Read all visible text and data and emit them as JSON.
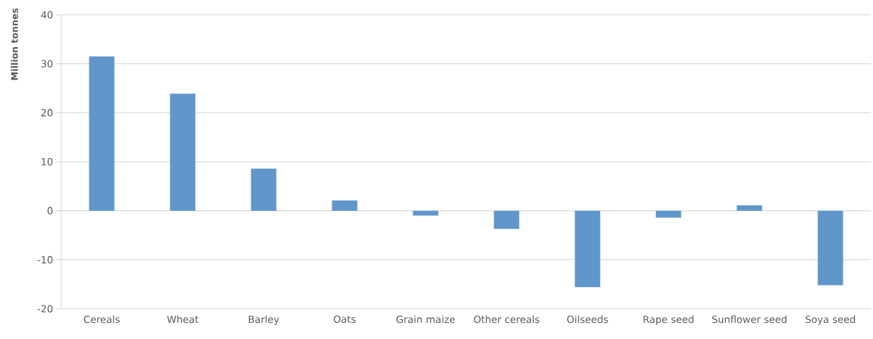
{
  "chart_data": {
    "type": "bar",
    "ylabel": "Million tonnes",
    "categories": [
      "Cereals",
      "Wheat",
      "Barley",
      "Oats",
      "Grain maize",
      "Other cereals",
      "Oilseeds",
      "Rape seed",
      "Sunflower seed",
      "Soya seed"
    ],
    "values": [
      31.5,
      23.9,
      8.6,
      2.1,
      -1.0,
      -3.7,
      -15.6,
      -1.4,
      1.1,
      -15.2
    ],
    "color": "#6096c9",
    "ylim": [
      -20,
      40
    ],
    "yticks": [
      -20,
      -10,
      0,
      10,
      20,
      30,
      40
    ],
    "grid": "y"
  }
}
